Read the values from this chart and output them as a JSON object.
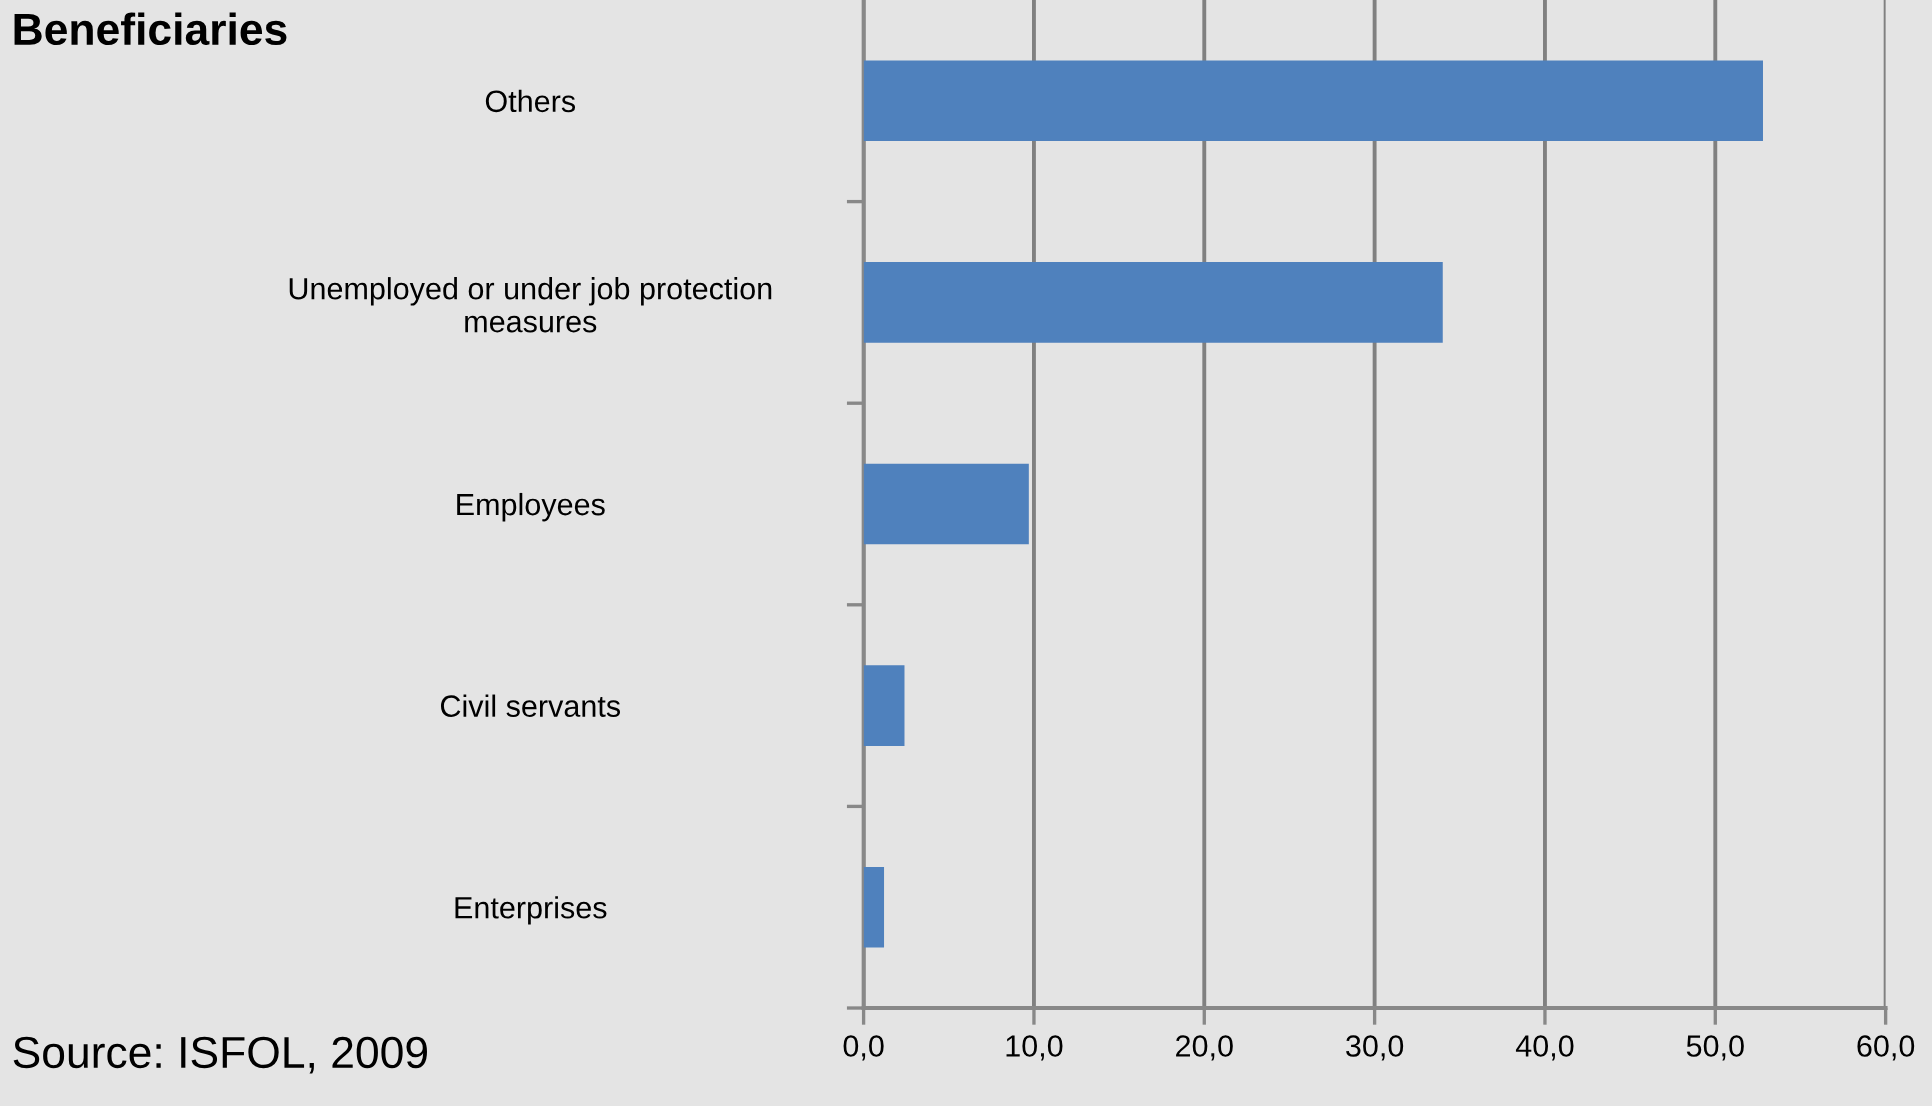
{
  "chart_data": {
    "type": "bar",
    "orientation": "horizontal",
    "title": "Beneficiaries",
    "categories": [
      "Others",
      "Unemployed or under job protection\nmeasures",
      "Employees",
      "Civil servants",
      "Enterprises"
    ],
    "values": [
      52.8,
      34.0,
      9.7,
      2.4,
      1.2
    ],
    "color": "#4f81bd",
    "xlim": [
      0,
      60
    ],
    "xticks": [
      {
        "value": 0,
        "label": "0,0"
      },
      {
        "value": 10,
        "label": "10,0"
      },
      {
        "value": 20,
        "label": "20,0"
      },
      {
        "value": 30,
        "label": "30,0"
      },
      {
        "value": 40,
        "label": "40,0"
      },
      {
        "value": 50,
        "label": "50,0"
      },
      {
        "value": 60,
        "label": "60,0"
      }
    ],
    "grid": "x",
    "legend": false,
    "annotations": [
      "Source: ISFOL, 2009"
    ]
  }
}
